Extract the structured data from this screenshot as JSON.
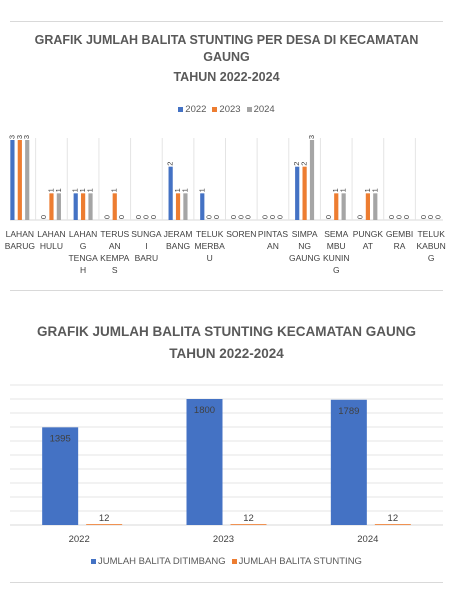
{
  "chart_data": [
    {
      "type": "bar",
      "title": "GRAFIK JUMLAH BALITA STUNTING PER DESA DI KECAMATAN GAUNG",
      "subtitle": "TAHUN 2022-2024",
      "legend_position": "top",
      "grid": false,
      "ylim": [
        0,
        3
      ],
      "categories": [
        "LAHAN BARUG",
        "LAHAN HULU",
        "LAHAN G TENGA H",
        "TERUS AN KEMPA S",
        "SUNGA I BARU",
        "JERAM BANG",
        "TELUK MERBA U",
        "SOREN",
        "PINTAS AN",
        "SIMPA NG GAUNG",
        "SEMA MBU KUNIN G",
        "PUNGK AT",
        "GEMBI RA",
        "TELUK KABUN G"
      ],
      "series": [
        {
          "name": "2022",
          "color": "#4472c4",
          "values": [
            3,
            0,
            1,
            0,
            0,
            2,
            1,
            0,
            0,
            2,
            0,
            0,
            0,
            0
          ]
        },
        {
          "name": "2023",
          "color": "#ed7d31",
          "values": [
            3,
            1,
            1,
            1,
            0,
            1,
            0,
            0,
            0,
            2,
            1,
            1,
            0,
            0
          ]
        },
        {
          "name": "2024",
          "color": "#a5a5a5",
          "values": [
            3,
            1,
            1,
            0,
            0,
            1,
            0,
            0,
            0,
            3,
            1,
            1,
            0,
            0
          ]
        }
      ]
    },
    {
      "type": "bar",
      "title": "GRAFIK JUMLAH BALITA STUNTING KECAMATAN GAUNG",
      "subtitle": "TAHUN 2022-2024",
      "legend_position": "bottom",
      "grid": true,
      "ylim": [
        0,
        2000
      ],
      "categories": [
        "2022",
        "2023",
        "2024"
      ],
      "series": [
        {
          "name": "JUMLAH BALITA DITIMBANG",
          "color": "#4472c4",
          "values": [
            1395,
            1800,
            1789
          ]
        },
        {
          "name": "JUMLAH BALITA STUNTING",
          "color": "#ed7d31",
          "values": [
            12,
            12,
            12
          ]
        }
      ]
    }
  ]
}
